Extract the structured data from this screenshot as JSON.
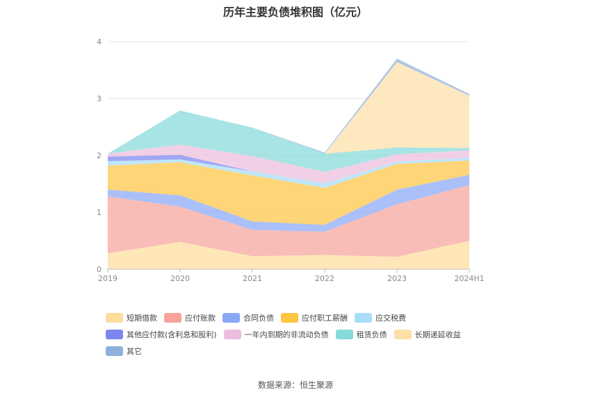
{
  "chart_data": {
    "type": "area",
    "title": "历年主要负债堆积图（亿元）",
    "x": [
      "2019",
      "2020",
      "2021",
      "2022",
      "2023",
      "2024H1"
    ],
    "yticks": [
      "0",
      "1",
      "2",
      "3",
      "4"
    ],
    "ylim": [
      0,
      4
    ],
    "stacked": true,
    "legend_position": "bottom",
    "series": [
      {
        "name": "短期借款",
        "color": "#fddc9c",
        "values": [
          0.28,
          0.48,
          0.23,
          0.25,
          0.22,
          0.5
        ]
      },
      {
        "name": "应付账款",
        "color": "#f7a39b",
        "values": [
          1.0,
          0.62,
          0.46,
          0.41,
          0.92,
          0.98
        ]
      },
      {
        "name": "合同负债",
        "color": "#8aa8f7",
        "values": [
          0.12,
          0.2,
          0.15,
          0.12,
          0.26,
          0.18
        ]
      },
      {
        "name": "应付职工薪酬",
        "color": "#fdc543",
        "values": [
          0.42,
          0.58,
          0.81,
          0.65,
          0.45,
          0.25
        ]
      },
      {
        "name": "应交税费",
        "color": "#a8dcf7",
        "values": [
          0.08,
          0.05,
          0.07,
          0.08,
          0.04,
          0.05
        ]
      },
      {
        "name": "其他应付款(含利息和股利)",
        "color": "#7d86ef",
        "values": [
          0.08,
          0.08,
          0.0,
          0.0,
          0.0,
          0.0
        ]
      },
      {
        "name": "一年内到期的非流动负债",
        "color": "#ebbede",
        "values": [
          0.05,
          0.18,
          0.27,
          0.2,
          0.13,
          0.13
        ]
      },
      {
        "name": "租赁负债",
        "color": "#86dad8",
        "values": [
          0.0,
          0.6,
          0.5,
          0.32,
          0.12,
          0.04
        ]
      },
      {
        "name": "长期递延收益",
        "color": "#fddfa8",
        "values": [
          0.0,
          0.0,
          0.0,
          0.0,
          1.5,
          0.92
        ]
      },
      {
        "name": "其它",
        "color": "#8fb0dc",
        "values": [
          0.0,
          0.0,
          0.0,
          0.02,
          0.06,
          0.03
        ]
      }
    ]
  },
  "footer": {
    "source": "数据来源：恒生聚源"
  }
}
